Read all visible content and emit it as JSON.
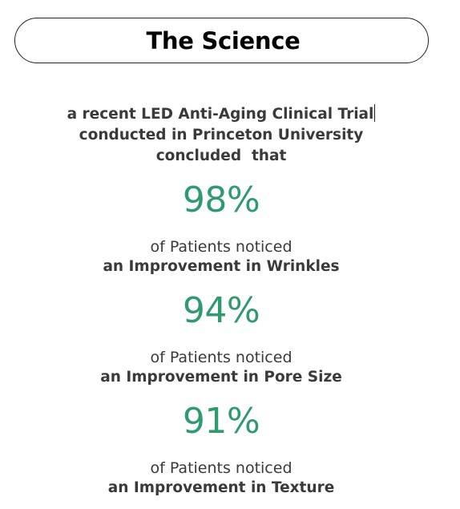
{
  "header": {
    "title": "The Science"
  },
  "intro": {
    "line1": "a recent LED Anti-Aging Clinical Trial",
    "line2": "conducted in Princeton University",
    "line3": "concluded  that"
  },
  "stats": [
    {
      "value": "98%",
      "subtitle": "of Patients noticed",
      "description": "an Improvement in Wrinkles"
    },
    {
      "value": "94%",
      "subtitle": "of Patients noticed",
      "description": "an Improvement in Pore Size"
    },
    {
      "value": "91%",
      "subtitle": "of Patients noticed",
      "description": "an Improvement in Texture"
    }
  ],
  "colors": {
    "accent": "#2f9a6e",
    "text": "#3a3a3a",
    "heading": "#000000"
  }
}
